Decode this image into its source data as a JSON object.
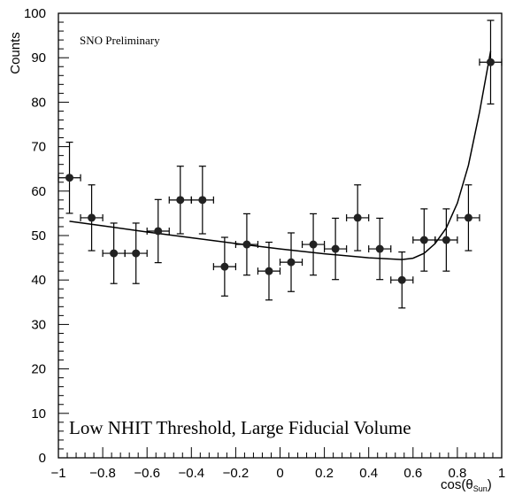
{
  "chart_data": {
    "type": "scatter",
    "title": "",
    "xlabel": "cos(θ",
    "xlabel_sub": "Sun",
    "xlabel_close": ")",
    "ylabel": "Counts",
    "xlim": [
      -1,
      1
    ],
    "ylim": [
      0,
      100
    ],
    "x_ticks": [
      -1,
      -0.8,
      -0.6,
      -0.4,
      -0.2,
      0,
      0.2,
      0.4,
      0.6,
      0.8,
      1
    ],
    "x_tick_labels": [
      "−1",
      "−0.8",
      "−0.6",
      "−0.4",
      "−0.2",
      "0",
      "0.2",
      "0.4",
      "0.6",
      "0.8",
      "1"
    ],
    "y_ticks": [
      0,
      10,
      20,
      30,
      40,
      50,
      60,
      70,
      80,
      90,
      100
    ],
    "y_tick_labels": [
      "0",
      "10",
      "20",
      "30",
      "40",
      "50",
      "60",
      "70",
      "80",
      "90",
      "100"
    ],
    "grid": false,
    "annotations": [
      "SNO Preliminary",
      "Low NHIT Threshold, Large Fiducial Volume"
    ],
    "series": [
      {
        "kind": "points_with_errors",
        "x": [
          -0.95,
          -0.85,
          -0.75,
          -0.65,
          -0.55,
          -0.45,
          -0.35,
          -0.25,
          -0.15,
          -0.05,
          0.05,
          0.15,
          0.25,
          0.35,
          0.45,
          0.55,
          0.65,
          0.75,
          0.85,
          0.95
        ],
        "y": [
          63,
          54,
          46,
          46,
          51,
          58,
          58,
          43,
          48,
          42,
          44,
          48,
          47,
          54,
          47,
          40,
          49,
          49,
          54,
          89
        ],
        "y_err": [
          8,
          7.4,
          6.8,
          6.8,
          7.1,
          7.6,
          7.6,
          6.6,
          6.9,
          6.5,
          6.6,
          6.9,
          6.9,
          7.4,
          6.9,
          6.3,
          7.0,
          7.0,
          7.4,
          9.4
        ],
        "x_err": 0.05
      },
      {
        "kind": "fit_curve",
        "x": [
          -0.95,
          -0.8,
          -0.6,
          -0.4,
          -0.2,
          0,
          0.2,
          0.4,
          0.55,
          0.6,
          0.65,
          0.7,
          0.75,
          0.8,
          0.85,
          0.9,
          0.95
        ],
        "y": [
          53.2,
          52.2,
          50.8,
          49.5,
          48.2,
          47.0,
          45.9,
          45.0,
          44.6,
          44.9,
          46.0,
          48.2,
          51.7,
          57.3,
          65.8,
          77.8,
          91.5
        ]
      }
    ]
  }
}
